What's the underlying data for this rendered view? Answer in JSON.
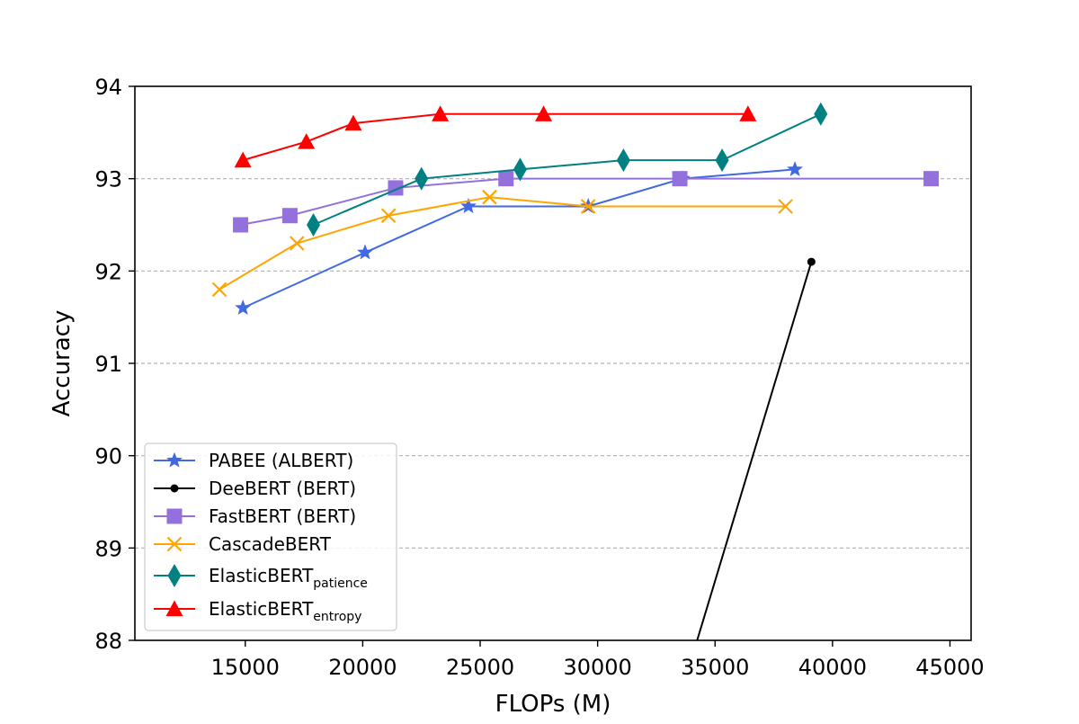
{
  "chart_data": {
    "type": "line",
    "xlabel": "FLOPs (M)",
    "ylabel": "Accuracy",
    "xlim": [
      10300,
      45900
    ],
    "ylim": [
      88,
      94
    ],
    "x_ticks": [
      15000,
      20000,
      25000,
      30000,
      35000,
      40000,
      45000
    ],
    "x_tick_labels": [
      "15000",
      "20000",
      "25000",
      "30000",
      "35000",
      "40000",
      "45000"
    ],
    "y_ticks": [
      88,
      89,
      90,
      91,
      92,
      93,
      94
    ],
    "y_tick_labels": [
      "88",
      "89",
      "90",
      "91",
      "92",
      "93",
      "94"
    ],
    "grid": "horizontal dashed",
    "legend_position": "lower-left",
    "series": [
      {
        "name": "PABEE (ALBERT)",
        "color": "#4169e1",
        "marker": "star",
        "x": [
          14900,
          20100,
          24500,
          29600,
          33600,
          38400
        ],
        "y": [
          91.6,
          92.2,
          92.7,
          92.7,
          93.0,
          93.1
        ]
      },
      {
        "name": "DeeBERT (BERT)",
        "color": "#000000",
        "marker": "dot",
        "x": [
          39100,
          34000
        ],
        "y": [
          92.1,
          87.8
        ]
      },
      {
        "name": "FastBERT (BERT)",
        "color": "#9370db",
        "marker": "square",
        "x": [
          14800,
          16900,
          21400,
          26100,
          33500,
          44200
        ],
        "y": [
          92.5,
          92.6,
          92.9,
          93.0,
          93.0,
          93.0
        ]
      },
      {
        "name": "CascadeBERT",
        "color": "#ffa500",
        "marker": "x",
        "x": [
          13900,
          17200,
          21100,
          25400,
          29600,
          38000
        ],
        "y": [
          91.8,
          92.3,
          92.6,
          92.8,
          92.7,
          92.7
        ]
      },
      {
        "name": "ElasticBERT",
        "name_sub": "patience",
        "color": "#008080",
        "marker": "thin_diamond",
        "x": [
          17900,
          22500,
          26700,
          31100,
          35300,
          39500
        ],
        "y": [
          92.5,
          93.0,
          93.1,
          93.2,
          93.2,
          93.7
        ]
      },
      {
        "name": "ElasticBERT",
        "name_sub": "entropy",
        "color": "#ff0000",
        "marker": "triangle",
        "x": [
          14900,
          17600,
          19600,
          23300,
          27700,
          36400
        ],
        "y": [
          93.2,
          93.4,
          93.6,
          93.7,
          93.7,
          93.7
        ]
      }
    ]
  }
}
